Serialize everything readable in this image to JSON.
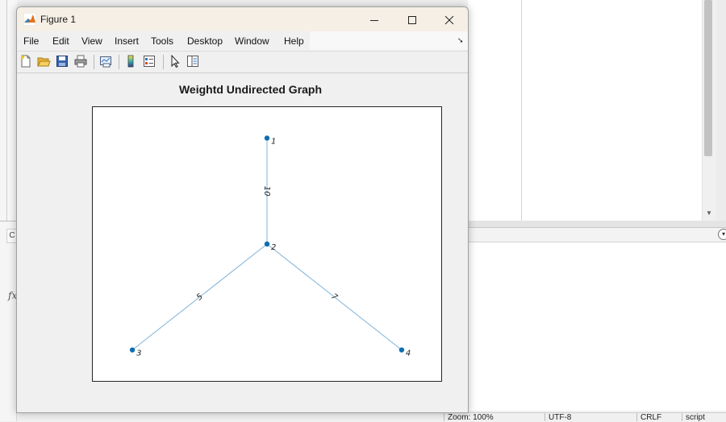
{
  "figure_window": {
    "title": "Figure 1",
    "menu": [
      "File",
      "Edit",
      "View",
      "Insert",
      "Tools",
      "Desktop",
      "Window",
      "Help"
    ],
    "toolbar": [
      "new-figure-icon",
      "open-file-icon",
      "save-icon",
      "print-icon",
      "link-plot-icon",
      "colorbar-icon",
      "legend-icon",
      "pointer-edit-icon",
      "property-inspector-icon"
    ]
  },
  "status_bar": {
    "zoom": "Zoom: 100%",
    "encoding": "UTF-8",
    "line_ending": "CRLF",
    "file_type": "script"
  },
  "colors": {
    "edge": "#7fb3d8",
    "node": "#0e6fb0"
  },
  "chart_data": {
    "type": "graph",
    "title": "Weightd Undirected Graph",
    "nodes": [
      {
        "id": "1",
        "x": 2,
        "y": 4
      },
      {
        "id": "2",
        "x": 2,
        "y": 3
      },
      {
        "id": "3",
        "x": 1,
        "y": 2
      },
      {
        "id": "4",
        "x": 3,
        "y": 2
      }
    ],
    "edges": [
      {
        "source": "1",
        "target": "2",
        "weight": "10"
      },
      {
        "source": "2",
        "target": "3",
        "weight": "5"
      },
      {
        "source": "2",
        "target": "4",
        "weight": "7"
      }
    ],
    "xlim": [
      0.7,
      3.3
    ],
    "ylim": [
      1.7,
      4.3
    ],
    "grid": false
  }
}
